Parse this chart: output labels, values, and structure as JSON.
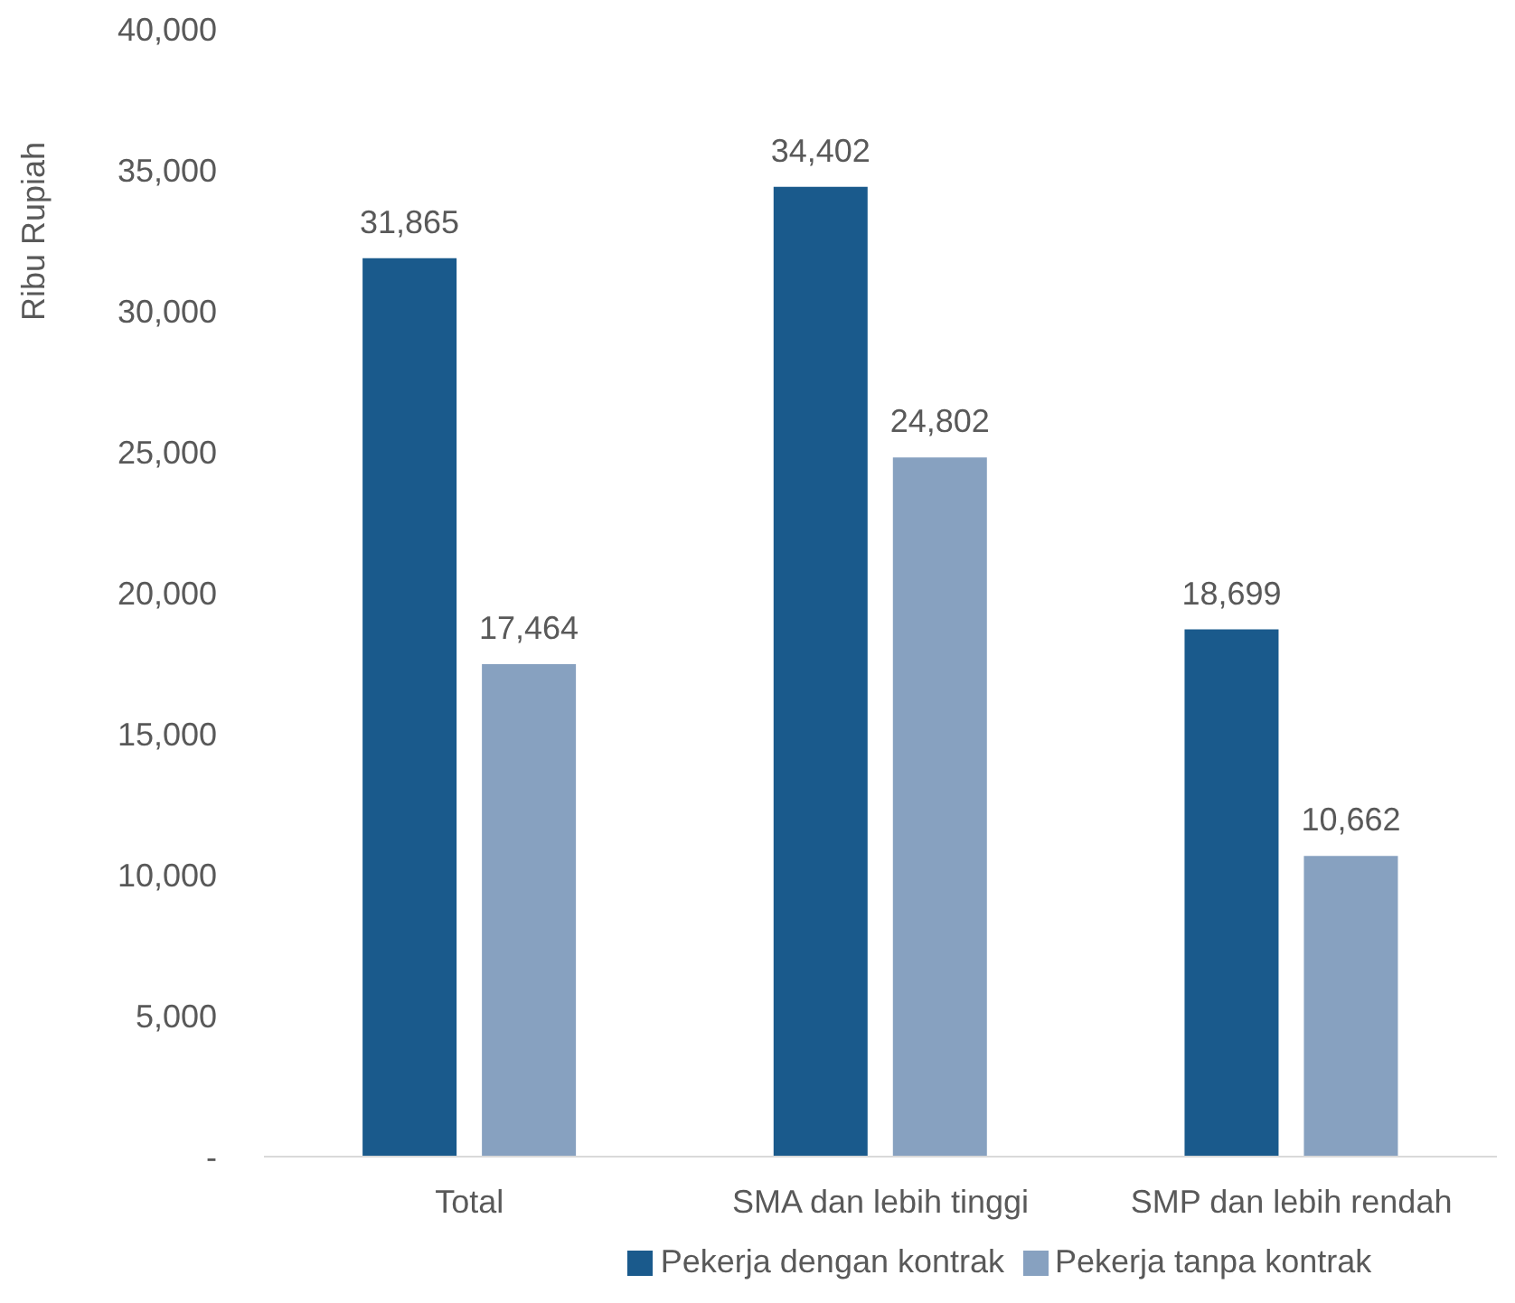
{
  "chart_data": {
    "type": "bar",
    "ylabel": "Ribu Rupiah",
    "categories": [
      "Total",
      "SMA dan lebih tinggi",
      "SMP dan lebih rendah"
    ],
    "series": [
      {
        "name": "Pekerja dengan kontrak",
        "color": "#1a5a8c",
        "values": [
          31865,
          34402,
          18699
        ],
        "value_labels": [
          "31,865",
          "34,402",
          "18,699"
        ]
      },
      {
        "name": "Pekerja tanpa kontrak",
        "color": "#87a1c0",
        "values": [
          17464,
          24802,
          10662
        ],
        "value_labels": [
          "17,464",
          "24,802",
          "10,662"
        ]
      }
    ],
    "ylim": [
      0,
      40000
    ],
    "yticks": [
      {
        "value": 0,
        "label": "-"
      },
      {
        "value": 5000,
        "label": "5,000"
      },
      {
        "value": 10000,
        "label": "10,000"
      },
      {
        "value": 15000,
        "label": "15,000"
      },
      {
        "value": 20000,
        "label": "20,000"
      },
      {
        "value": 25000,
        "label": "25,000"
      },
      {
        "value": 30000,
        "label": "30,000"
      },
      {
        "value": 35000,
        "label": "35,000"
      },
      {
        "value": 40000,
        "label": "40,000"
      }
    ],
    "grid": false,
    "legend": "bottom"
  }
}
